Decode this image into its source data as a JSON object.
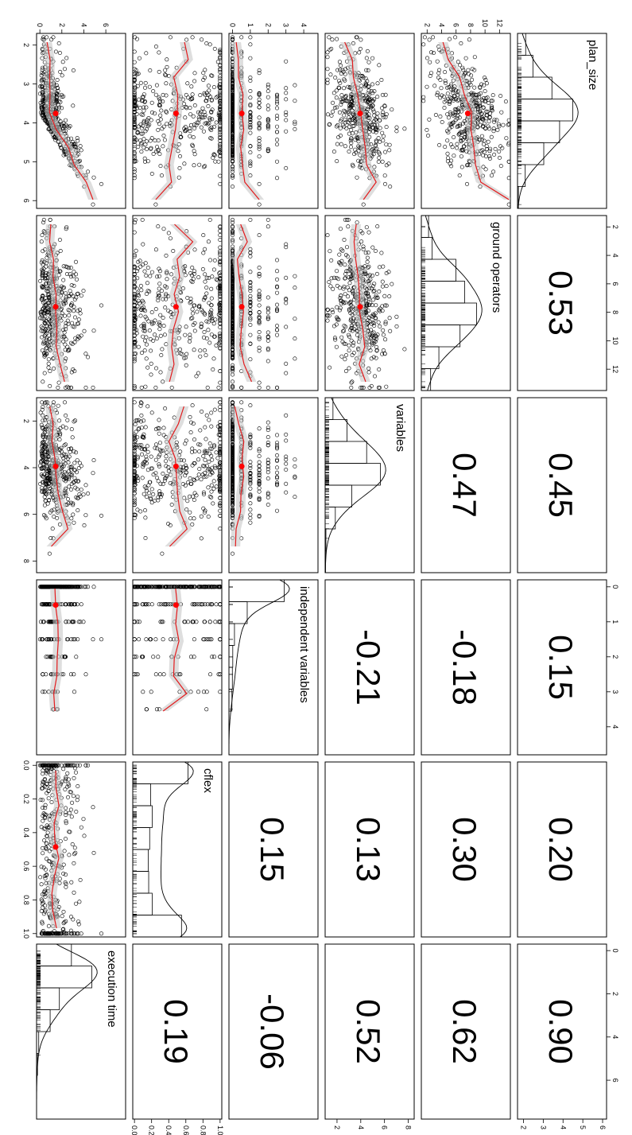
{
  "chart_data": {
    "type": "scatter-matrix",
    "orientation": "rotated-90-clockwise",
    "variables": [
      "plan_size",
      "ground operators",
      "variables",
      "independent variables",
      "cflex",
      "execution time"
    ],
    "correlations": [
      {
        "row": "plan_size",
        "col": "ground operators",
        "value": "0.53"
      },
      {
        "row": "plan_size",
        "col": "variables",
        "value": "0.45"
      },
      {
        "row": "plan_size",
        "col": "independent variables",
        "value": "0.15"
      },
      {
        "row": "plan_size",
        "col": "cflex",
        "value": "0.20"
      },
      {
        "row": "plan_size",
        "col": "execution time",
        "value": "0.90"
      },
      {
        "row": "ground operators",
        "col": "variables",
        "value": "0.47"
      },
      {
        "row": "ground operators",
        "col": "independent variables",
        "value": "-0.18"
      },
      {
        "row": "ground operators",
        "col": "cflex",
        "value": "0.30"
      },
      {
        "row": "ground operators",
        "col": "execution time",
        "value": "0.62"
      },
      {
        "row": "variables",
        "col": "independent variables",
        "value": "-0.21"
      },
      {
        "row": "variables",
        "col": "cflex",
        "value": "0.13"
      },
      {
        "row": "variables",
        "col": "execution time",
        "value": "0.52"
      },
      {
        "row": "independent variables",
        "col": "cflex",
        "value": "0.15"
      },
      {
        "row": "independent variables",
        "col": "execution time",
        "value": "-0.06"
      },
      {
        "row": "cflex",
        "col": "execution time",
        "value": "0.19"
      }
    ],
    "column_axis_ticks": [
      [
        "2",
        "3",
        "4",
        "5",
        "6"
      ],
      [
        "2",
        "4",
        "6",
        "8",
        "10",
        "12"
      ],
      [
        "2",
        "4",
        "6",
        "8"
      ],
      [
        "0",
        "1",
        "2",
        "3",
        "4"
      ],
      [
        "0.0",
        "0.2",
        "0.4",
        "0.6",
        "0.8",
        "1.0"
      ],
      [
        "0",
        "2",
        "4",
        "6"
      ]
    ],
    "column_axis_ranges": [
      [
        1.7,
        6.2
      ],
      [
        1.2,
        13.5
      ],
      [
        1.0,
        8.5
      ],
      [
        -0.2,
        4.8
      ],
      [
        -0.02,
        1.02
      ],
      [
        -0.3,
        7.8
      ]
    ],
    "row_axis_ticks": [
      [
        "2",
        "3",
        "4",
        "5",
        "6"
      ],
      [
        "2",
        "4",
        "6",
        "8",
        "10",
        "12"
      ],
      [
        "2",
        "4",
        "6",
        "8"
      ],
      [
        "0",
        "1",
        "2",
        "3",
        "4"
      ],
      [
        "0.0",
        "0.2",
        "0.4",
        "0.6",
        "0.8",
        "1.0"
      ],
      [
        "0",
        "2",
        "4",
        "6"
      ]
    ],
    "row_axis_ranges": [
      [
        1.7,
        6.2
      ],
      [
        1.2,
        13.5
      ],
      [
        1.0,
        8.5
      ],
      [
        -0.2,
        4.8
      ],
      [
        -0.02,
        1.02
      ],
      [
        -0.3,
        7.8
      ]
    ],
    "diagonal": "histogram + density + rug",
    "lower": "scatter + loess (red) + confidence band (grey) + mean point (red) + correlation ellipse",
    "upper": "pearson correlation coefficient",
    "colors": {
      "points": "#000000",
      "loess": "#e31a1c",
      "band": "#c8c8c8",
      "mean": "#ff0000",
      "panel_border": "#000000",
      "background": "#ffffff"
    }
  }
}
